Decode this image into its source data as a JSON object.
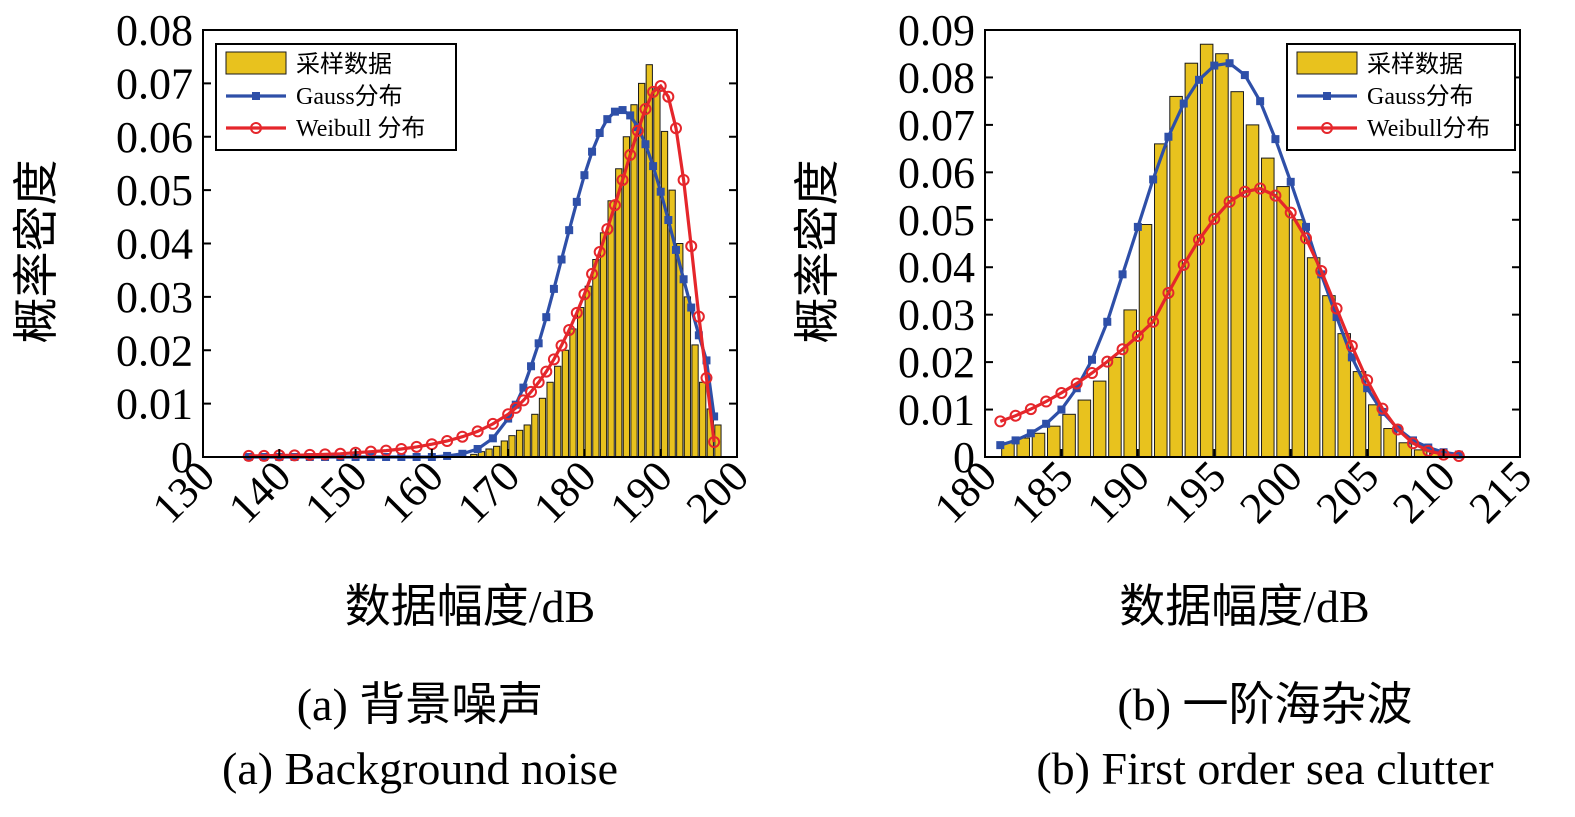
{
  "colors": {
    "bar": "#e8c21e",
    "bar_edge": "#1a1a1a",
    "gauss": "#2e4fa8",
    "weibull": "#e5262b"
  },
  "panels": [
    {
      "caption_cn": "(a) 背景噪声",
      "caption_en": "(a) Background noise",
      "chart_data": {
        "type": "bar",
        "xlabel": "数据幅度/dB",
        "ylabel": "概率密度",
        "xlim": [
          130,
          200
        ],
        "ylim": [
          0,
          0.08
        ],
        "xticks": [
          "130",
          "140",
          "150",
          "160",
          "170",
          "180",
          "190",
          "200"
        ],
        "yticks": [
          "0",
          "0.01",
          "0.02",
          "0.03",
          "0.04",
          "0.05",
          "0.06",
          "0.07",
          "0.08"
        ],
        "legend_position": "top-left",
        "bars": {
          "name": "采样数据",
          "x": [
            136.5,
            137.5,
            138.5,
            139.5,
            140.5,
            141.5,
            142.5,
            143.5,
            144.5,
            145.5,
            146.5,
            147.5,
            148.5,
            149.5,
            150.5,
            151.5,
            152.5,
            153.5,
            154.5,
            155.5,
            156.5,
            157.5,
            158.5,
            159.5,
            160.5,
            161.5,
            162.5,
            163.5,
            164.5,
            165.5,
            166.5,
            167.5,
            168.5,
            169.5,
            170.5,
            171.5,
            172.5,
            173.5,
            174.5,
            175.5,
            176.5,
            177.5,
            178.5,
            179.5,
            180.5,
            181.5,
            182.5,
            183.5,
            184.5,
            185.5,
            186.5,
            187.5,
            188.5,
            189.5,
            190.5,
            191.5,
            192.5,
            193.5,
            194.5,
            195.5,
            196.5,
            197.5
          ],
          "values": [
            0,
            0,
            0,
            0,
            0,
            0,
            0,
            0,
            0,
            0,
            0,
            0,
            0,
            0,
            0,
            0,
            0,
            0,
            0,
            0,
            0,
            0,
            0,
            0,
            0,
            0,
            0,
            0,
            0,
            0.0005,
            0.001,
            0.0015,
            0.002,
            0.003,
            0.004,
            0.005,
            0.006,
            0.008,
            0.011,
            0.014,
            0.017,
            0.02,
            0.024,
            0.028,
            0.032,
            0.037,
            0.042,
            0.048,
            0.054,
            0.06,
            0.066,
            0.07,
            0.0735,
            0.069,
            0.061,
            0.05,
            0.04,
            0.03,
            0.021,
            0.014,
            0.009,
            0.006
          ]
        },
        "series": [
          {
            "name": "Gauss分布",
            "x": [
              136,
              138,
              140,
              142,
              144,
              146,
              148,
              150,
              152,
              154,
              156,
              158,
              160,
              162,
              164,
              166,
              168,
              170,
              171,
              172,
              173,
              174,
              175,
              176,
              177,
              178,
              179,
              180,
              181,
              182,
              183,
              184,
              185,
              186,
              187,
              188,
              189,
              190,
              191,
              192,
              193,
              194,
              195,
              196,
              197
            ],
            "values": [
              0,
              0,
              0,
              0,
              0,
              0,
              0,
              0,
              0,
              0,
              0,
              0,
              0,
              0.0002,
              0.0006,
              0.0015,
              0.0035,
              0.0072,
              0.0098,
              0.013,
              0.017,
              0.0213,
              0.0262,
              0.0315,
              0.037,
              0.0425,
              0.0478,
              0.0528,
              0.0572,
              0.0607,
              0.0633,
              0.0647,
              0.065,
              0.064,
              0.0618,
              0.0586,
              0.0545,
              0.0497,
              0.0444,
              0.0388,
              0.0333,
              0.028,
              0.0228,
              0.0181,
              0.0076
            ]
          },
          {
            "name": "Weibull 分布",
            "x": [
              136,
              138,
              140,
              142,
              144,
              146,
              148,
              150,
              152,
              154,
              156,
              158,
              160,
              162,
              164,
              166,
              168,
              170,
              171,
              172,
              173,
              174,
              175,
              176,
              177,
              178,
              179,
              180,
              181,
              182,
              183,
              184,
              185,
              186,
              187,
              188,
              189,
              190,
              191,
              192,
              193,
              194,
              195,
              196,
              197
            ],
            "values": [
              0.0002,
              0.0002,
              0.0003,
              0.0003,
              0.0004,
              0.0005,
              0.0006,
              0.0008,
              0.001,
              0.0012,
              0.0015,
              0.0019,
              0.0024,
              0.003,
              0.0038,
              0.0048,
              0.0062,
              0.008,
              0.0092,
              0.0106,
              0.0122,
              0.014,
              0.016,
              0.0183,
              0.0209,
              0.0238,
              0.027,
              0.0305,
              0.0343,
              0.0384,
              0.0427,
              0.0472,
              0.0519,
              0.0566,
              0.0611,
              0.0652,
              0.0684,
              0.0695,
              0.0675,
              0.0616,
              0.0519,
              0.0395,
              0.0263,
              0.0148,
              0.0028
            ]
          }
        ]
      }
    },
    {
      "caption_cn": "(b) 一阶海杂波",
      "caption_en": "(b) First order sea clutter",
      "chart_data": {
        "type": "bar",
        "xlabel": "数据幅度/dB",
        "ylabel": "概率密度",
        "xlim": [
          180,
          215
        ],
        "ylim": [
          0,
          0.09
        ],
        "xticks": [
          "180",
          "185",
          "190",
          "195",
          "200",
          "205",
          "210",
          "215"
        ],
        "yticks": [
          "0",
          "0.01",
          "0.02",
          "0.03",
          "0.04",
          "0.05",
          "0.06",
          "0.07",
          "0.08",
          "0.09"
        ],
        "legend_position": "top-right",
        "bars": {
          "name": "采样数据",
          "x": [
            181.5,
            182.5,
            183.5,
            184.5,
            185.5,
            186.5,
            187.5,
            188.5,
            189.5,
            190.5,
            191.5,
            192.5,
            193.5,
            194.5,
            195.5,
            196.5,
            197.5,
            198.5,
            199.5,
            200.5,
            201.5,
            202.5,
            203.5,
            204.5,
            205.5,
            206.5,
            207.5,
            208.5,
            209.5,
            210.5
          ],
          "values": [
            0.003,
            0.004,
            0.005,
            0.0065,
            0.009,
            0.012,
            0.016,
            0.021,
            0.031,
            0.049,
            0.066,
            0.076,
            0.083,
            0.087,
            0.085,
            0.077,
            0.07,
            0.063,
            0.057,
            0.05,
            0.042,
            0.034,
            0.026,
            0.018,
            0.011,
            0.006,
            0.003,
            0.0015,
            0.0008,
            0.0003
          ]
        },
        "series": [
          {
            "name": "Gauss分布",
            "x": [
              181,
              182,
              183,
              184,
              185,
              186,
              187,
              188,
              189,
              190,
              191,
              192,
              193,
              194,
              195,
              196,
              197,
              198,
              199,
              200,
              201,
              202,
              203,
              204,
              205,
              206,
              207,
              208,
              209,
              210,
              211
            ],
            "values": [
              0.0025,
              0.0035,
              0.005,
              0.007,
              0.01,
              0.0145,
              0.0205,
              0.0285,
              0.0385,
              0.0485,
              0.0585,
              0.0675,
              0.0745,
              0.0795,
              0.0825,
              0.083,
              0.0805,
              0.075,
              0.067,
              0.058,
              0.0485,
              0.0385,
              0.0295,
              0.021,
              0.0145,
              0.0095,
              0.006,
              0.0035,
              0.002,
              0.001,
              0.0005
            ]
          },
          {
            "name": "Weibull分布",
            "x": [
              181,
              182,
              183,
              184,
              185,
              186,
              187,
              188,
              189,
              190,
              191,
              192,
              193,
              194,
              195,
              196,
              197,
              198,
              199,
              200,
              201,
              202,
              203,
              204,
              205,
              206,
              207,
              208,
              209,
              210,
              211
            ],
            "values": [
              0.0075,
              0.0087,
              0.0101,
              0.0117,
              0.0135,
              0.0155,
              0.0177,
              0.0201,
              0.0227,
              0.0255,
              0.0285,
              0.0346,
              0.0405,
              0.0458,
              0.0502,
              0.0538,
              0.0559,
              0.0566,
              0.0551,
              0.0515,
              0.0461,
              0.0392,
              0.0313,
              0.0234,
              0.0162,
              0.0102,
              0.0058,
              0.0029,
              0.0013,
              0.0005,
              0.0002
            ]
          }
        ]
      }
    }
  ]
}
